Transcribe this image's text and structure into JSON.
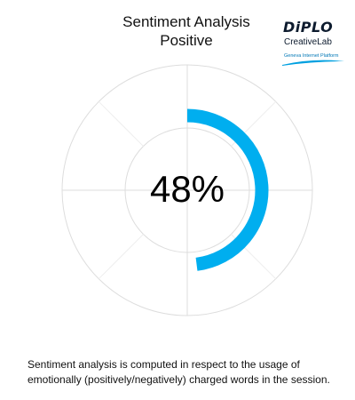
{
  "logo": {
    "name": "DiPLO",
    "sub": "CreativeLab",
    "tagline": "Geneva Internet Platform",
    "swoosh_color": "#00a0e0"
  },
  "footnote": {
    "line1": "Sentiment analysis is computed in respect to the usage of",
    "line2": "emotionally (positively/negatively) charged words in the session."
  },
  "chart_data": {
    "type": "radial-progress",
    "title": "Sentiment Analysis",
    "subtitle": "Positive",
    "value": 48,
    "value_label": "48%",
    "max": 100,
    "colors": {
      "progress": "#00aeef",
      "grid": "#dddddd"
    },
    "grid": true
  }
}
